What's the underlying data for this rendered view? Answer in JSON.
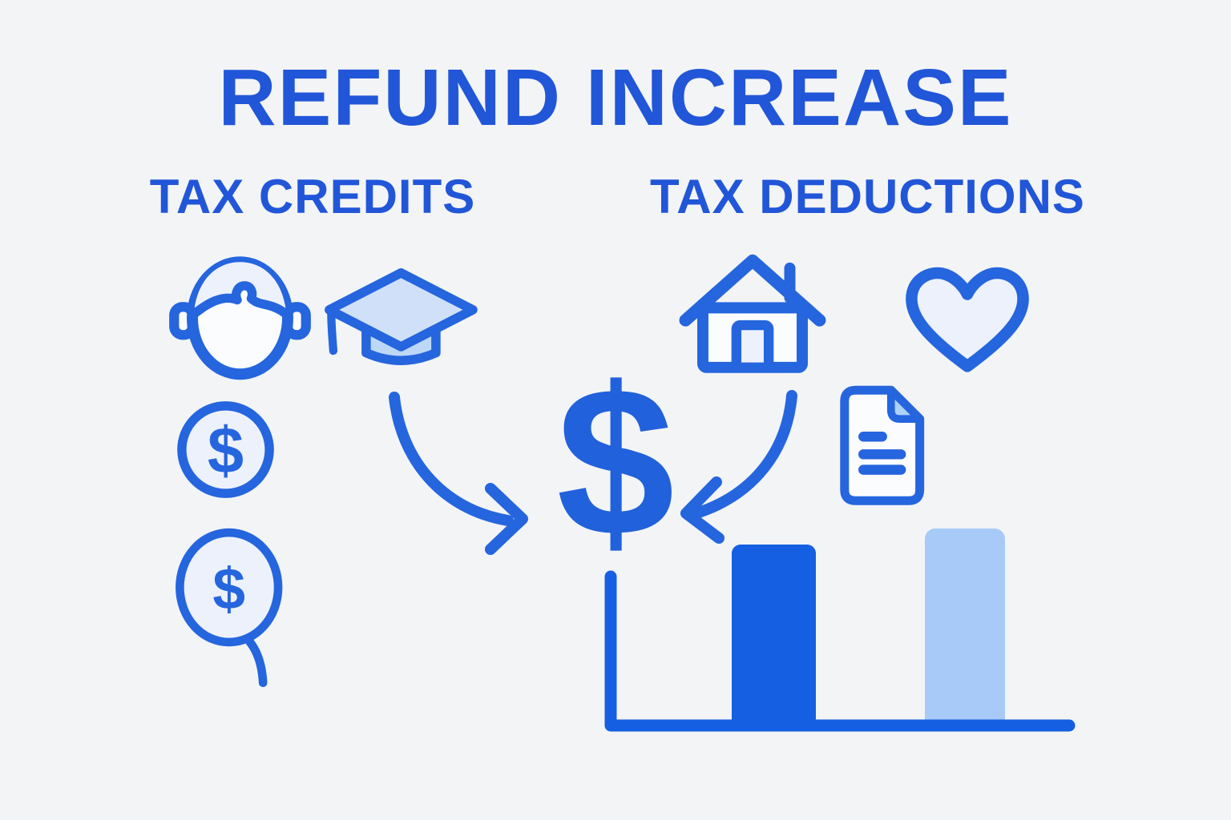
{
  "page": {
    "background_color": "#f3f4f6",
    "primary_blue": "#2156d8"
  },
  "title": "REFUND INCREASE",
  "sections": {
    "credits": {
      "label": "TAX CREDITS",
      "icons": [
        "child-face-icon",
        "graduation-cap-icon",
        "dollar-coin-icon",
        "dollar-balloon-icon"
      ]
    },
    "deductions": {
      "label": "TAX DEDUCTIONS",
      "icons": [
        "house-icon",
        "heart-icon",
        "document-icon"
      ]
    }
  },
  "center": {
    "dollar_symbol": "$"
  },
  "colors": {
    "icon_stroke": "#2565de",
    "icon_fill_light": "#edf1fb",
    "cap_fill": "#cfe0f8",
    "bar_dark": "#1560e2",
    "bar_light": "#a7caf8",
    "axis_blue": "#1560e2"
  },
  "chart_data": {
    "type": "bar",
    "categories": [
      "dark-blue-bar",
      "light-blue-bar"
    ],
    "values": [
      230,
      250
    ],
    "unit": "relative bar heights in px (no numeric axis labels shown)",
    "title": "",
    "xlabel": "",
    "ylabel": "",
    "axis_labels_visible": false,
    "legend": "none",
    "colors": [
      "#1560e2",
      "#a7caf8"
    ]
  }
}
